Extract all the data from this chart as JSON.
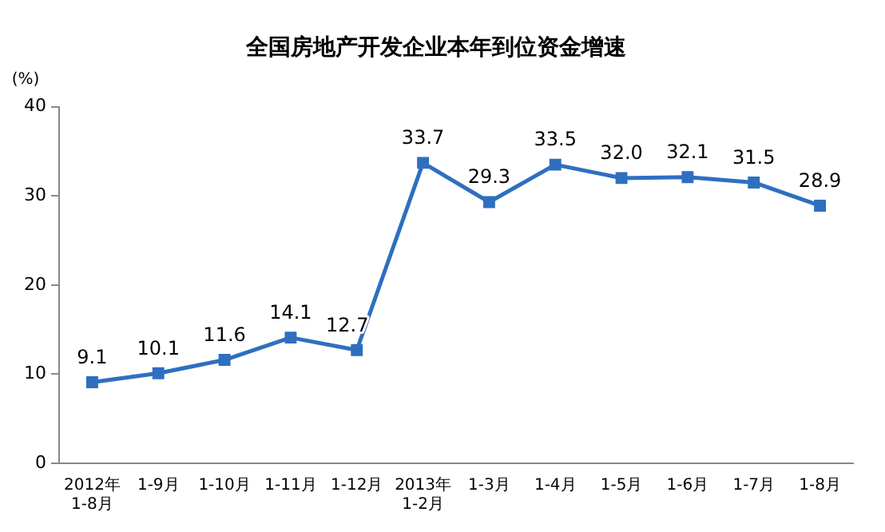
{
  "chart_data": {
    "type": "line",
    "title": "全国房地产开发企业本年到位资金增速",
    "ylabel": "(%)",
    "categories": [
      "2012年\n1-8月",
      "1-9月",
      "1-10月",
      "1-11月",
      "1-12月",
      "2013年\n1-2月",
      "1-3月",
      "1-4月",
      "1-5月",
      "1-6月",
      "1-7月",
      "1-8月"
    ],
    "series": [
      {
        "color": "#2e6fc0",
        "values": [
          9.1,
          10.1,
          11.6,
          14.1,
          12.7,
          33.7,
          29.3,
          33.5,
          32.0,
          32.1,
          31.5,
          28.9
        ]
      }
    ],
    "value_labels": [
      "9.1",
      "10.1",
      "11.6",
      "14.1",
      "12.7",
      "33.7",
      "29.3",
      "33.5",
      "32.0",
      "32.1",
      "31.5",
      "28.9"
    ],
    "ylim": [
      0,
      40
    ],
    "yticks": [
      0,
      10,
      20,
      30,
      40
    ],
    "grid": false,
    "legend": false,
    "marker": "square",
    "line_style": "solid"
  }
}
